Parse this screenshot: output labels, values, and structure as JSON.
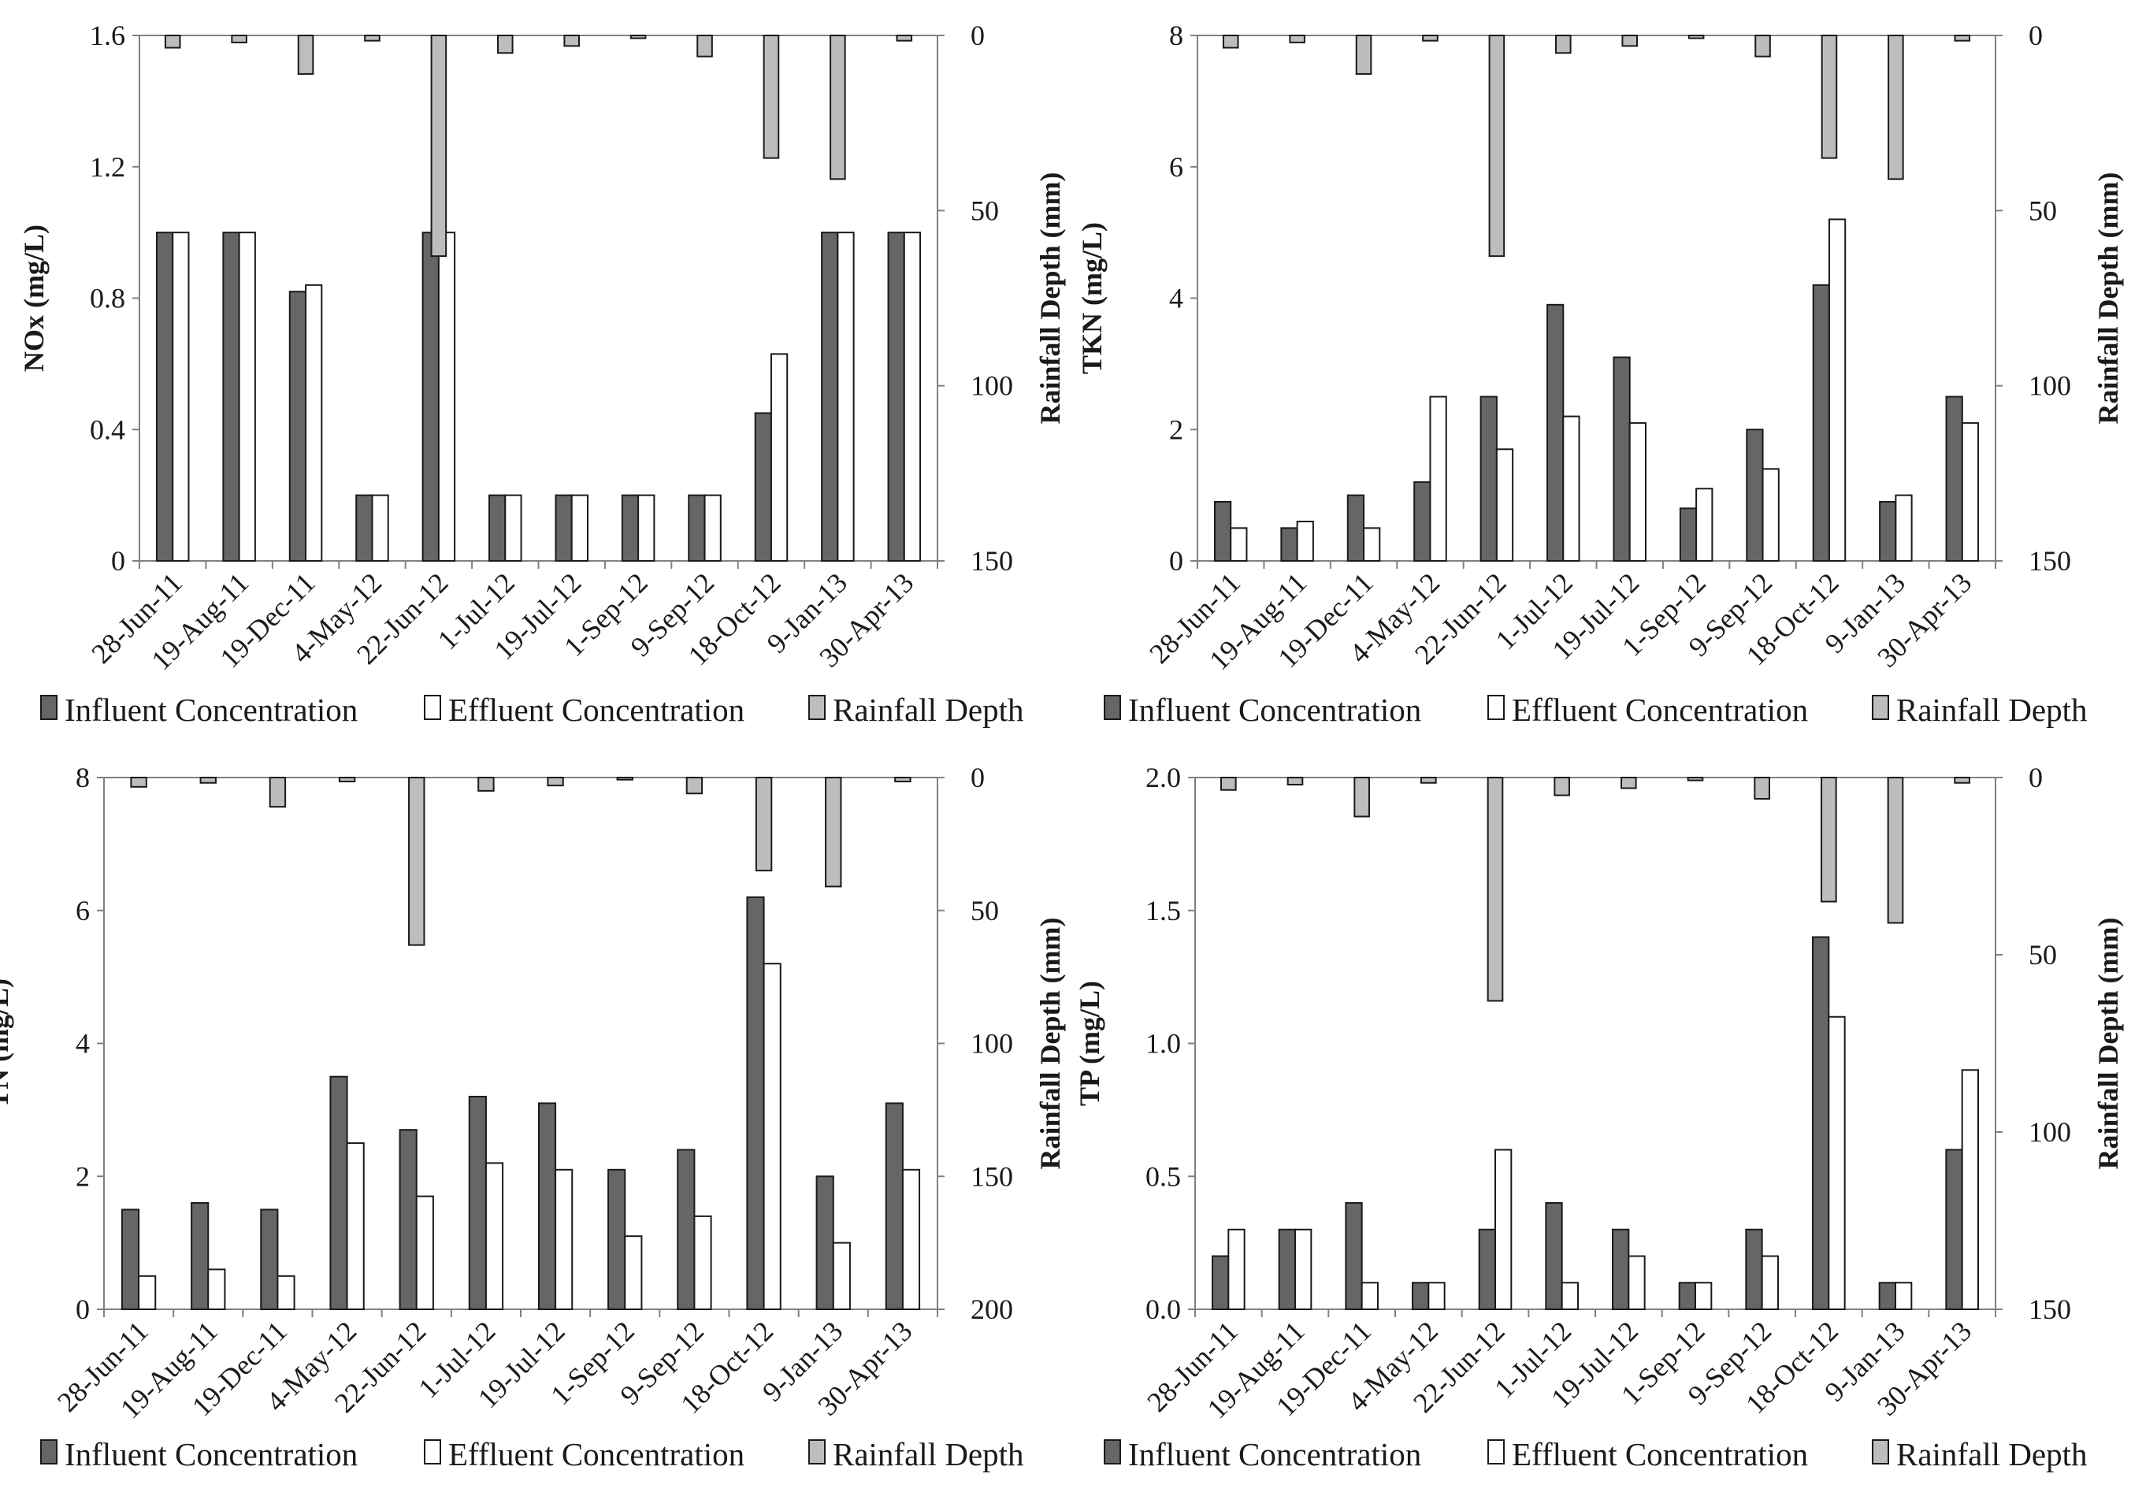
{
  "categories": [
    "28-Jun-11",
    "19-Aug-11",
    "19-Dec-11",
    "4-May-12",
    "22-Jun-12",
    "1-Jul-12",
    "19-Jul-12",
    "1-Sep-12",
    "9-Sep-12",
    "18-Oct-12",
    "9-Jan-13",
    "30-Apr-13"
  ],
  "legend": [
    "Influent Concentration",
    "Effluent Concentration",
    "Rainfall Depth"
  ],
  "colors": {
    "influent": "#666666",
    "effluent": "#ffffff",
    "rainfall": "#bdbdbd",
    "stroke": "#1a1a1a",
    "axis": "#808080"
  },
  "chart_data": [
    {
      "type": "bar",
      "title": "",
      "ylabel": "NOx (mg/L)",
      "ylabel_right": "Rainfall Depth (mm)",
      "ylim": [
        0,
        1.6
      ],
      "yticks": [
        0,
        0.4,
        0.8,
        1.2,
        1.6
      ],
      "ytick_labels": [
        "0",
        "0.4",
        "0.8",
        "1.2",
        "1.6"
      ],
      "y2lim": [
        0,
        150
      ],
      "y2ticks": [
        0,
        50,
        100,
        150
      ],
      "y2_inverted": true,
      "series": [
        {
          "name": "Influent Concentration",
          "values": [
            1.0,
            1.0,
            0.82,
            0.2,
            1.0,
            0.2,
            0.2,
            0.2,
            0.2,
            0.45,
            1.0,
            1.0
          ]
        },
        {
          "name": "Effluent Concentration",
          "values": [
            1.0,
            1.0,
            0.84,
            0.2,
            1.0,
            0.2,
            0.2,
            0.2,
            0.2,
            0.63,
            1.0,
            1.0
          ]
        },
        {
          "name": "Rainfall Depth",
          "axis": "right",
          "values": [
            3.5,
            2,
            11,
            1.5,
            63,
            5,
            3,
            0.8,
            6,
            35,
            41,
            1.5
          ]
        }
      ]
    },
    {
      "type": "bar",
      "title": "",
      "ylabel": "TKN (mg/L)",
      "ylabel_right": "Rainfall Depth (mm)",
      "ylim": [
        0,
        8
      ],
      "yticks": [
        0,
        2,
        4,
        6,
        8
      ],
      "ytick_labels": [
        "0",
        "2",
        "4",
        "6",
        "8"
      ],
      "y2lim": [
        0,
        150
      ],
      "y2ticks": [
        0,
        50,
        100,
        150
      ],
      "y2_inverted": true,
      "series": [
        {
          "name": "Influent Concentration",
          "values": [
            0.9,
            0.5,
            1.0,
            1.2,
            2.5,
            3.9,
            3.1,
            0.8,
            2.0,
            4.2,
            0.9,
            2.5
          ]
        },
        {
          "name": "Effluent Concentration",
          "values": [
            0.5,
            0.6,
            0.5,
            2.5,
            1.7,
            2.2,
            2.1,
            1.1,
            1.4,
            5.2,
            1.0,
            2.1
          ]
        },
        {
          "name": "Rainfall Depth",
          "axis": "right",
          "values": [
            3.5,
            2,
            11,
            1.5,
            63,
            5,
            3,
            0.8,
            6,
            35,
            41,
            1.5
          ]
        }
      ]
    },
    {
      "type": "bar",
      "title": "",
      "ylabel": "TN (mg/L)",
      "ylabel_right": "Rainfall Depth (mm)",
      "ylim": [
        0,
        8
      ],
      "yticks": [
        0,
        2,
        4,
        6,
        8
      ],
      "ytick_labels": [
        "0",
        "2",
        "4",
        "6",
        "8"
      ],
      "y2lim": [
        0,
        200
      ],
      "y2ticks": [
        0,
        50,
        100,
        150,
        200
      ],
      "y2_inverted": true,
      "series": [
        {
          "name": "Influent Concentration",
          "values": [
            1.5,
            1.6,
            1.5,
            3.5,
            2.7,
            3.2,
            3.1,
            2.1,
            2.4,
            6.2,
            2.0,
            3.1
          ]
        },
        {
          "name": "Effluent Concentration",
          "values": [
            0.5,
            0.6,
            0.5,
            2.5,
            1.7,
            2.2,
            2.1,
            1.1,
            1.4,
            5.2,
            1.0,
            2.1
          ]
        },
        {
          "name": "Rainfall Depth",
          "axis": "right",
          "values": [
            3.5,
            2,
            11,
            1.5,
            63,
            5,
            3,
            0.8,
            6,
            35,
            41,
            1.5
          ]
        }
      ]
    },
    {
      "type": "bar",
      "title": "",
      "ylabel": "TP (mg/L)",
      "ylabel_right": "Rainfall Depth (mm)",
      "ylim": [
        0,
        2.0
      ],
      "yticks": [
        0,
        0.5,
        1.0,
        1.5,
        2.0
      ],
      "ytick_labels": [
        "0.0",
        "0.5",
        "1.0",
        "1.5",
        "2.0"
      ],
      "y2lim": [
        0,
        150
      ],
      "y2ticks": [
        0,
        50,
        100,
        150
      ],
      "y2_inverted": true,
      "series": [
        {
          "name": "Influent Concentration",
          "values": [
            0.2,
            0.3,
            0.4,
            0.1,
            0.3,
            0.4,
            0.3,
            0.1,
            0.3,
            1.4,
            0.1,
            0.6
          ]
        },
        {
          "name": "Effluent Concentration",
          "values": [
            0.3,
            0.3,
            0.1,
            0.1,
            0.6,
            0.1,
            0.2,
            0.1,
            0.2,
            1.1,
            0.1,
            0.9
          ]
        },
        {
          "name": "Rainfall Depth",
          "axis": "right",
          "values": [
            3.5,
            2,
            11,
            1.5,
            63,
            5,
            3,
            0.8,
            6,
            35,
            41,
            1.5
          ]
        }
      ]
    }
  ]
}
